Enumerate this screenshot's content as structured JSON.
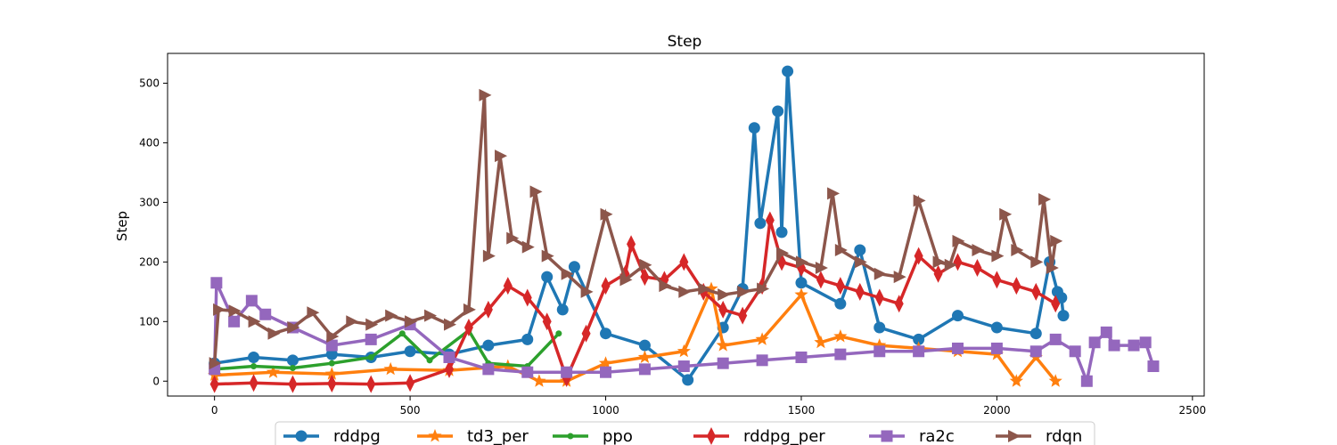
{
  "chart_data": {
    "type": "line",
    "title": "Step",
    "xlabel": "",
    "ylabel": "Step",
    "xlim": [
      -120,
      2530
    ],
    "ylim": [
      -25,
      550
    ],
    "xticks": [
      0,
      500,
      1000,
      1500,
      2000,
      2500
    ],
    "yticks": [
      0,
      100,
      200,
      300,
      400,
      500
    ],
    "grid": false,
    "legend_position": "bottom-center",
    "series": [
      {
        "name": "rddpg",
        "color": "#1f77b4",
        "marker": "circle",
        "x": [
          0,
          100,
          200,
          300,
          400,
          500,
          600,
          700,
          800,
          850,
          890,
          920,
          1000,
          1100,
          1210,
          1300,
          1350,
          1380,
          1395,
          1440,
          1450,
          1465,
          1500,
          1600,
          1650,
          1700,
          1800,
          1900,
          2000,
          2100,
          2135,
          2155,
          2165,
          2170
        ],
        "y": [
          30,
          40,
          35,
          45,
          40,
          50,
          45,
          60,
          70,
          175,
          120,
          192,
          80,
          60,
          2,
          90,
          155,
          425,
          265,
          453,
          250,
          520,
          165,
          130,
          220,
          90,
          70,
          110,
          90,
          80,
          200,
          150,
          140,
          110
        ]
      },
      {
        "name": "td3_per",
        "color": "#ff7f0e",
        "marker": "star",
        "x": [
          0,
          150,
          300,
          450,
          600,
          750,
          830,
          900,
          1000,
          1100,
          1200,
          1270,
          1300,
          1400,
          1500,
          1550,
          1600,
          1700,
          1800,
          1900,
          2000,
          2050,
          2100,
          2150
        ],
        "y": [
          10,
          15,
          12,
          20,
          18,
          25,
          0,
          0,
          30,
          40,
          50,
          155,
          60,
          70,
          145,
          65,
          75,
          60,
          55,
          50,
          45,
          0,
          40,
          0
        ]
      },
      {
        "name": "ppo",
        "color": "#2ca02c",
        "marker": "point",
        "x": [
          0,
          100,
          200,
          300,
          400,
          480,
          550,
          650,
          700,
          800,
          880
        ],
        "y": [
          20,
          25,
          22,
          30,
          40,
          80,
          35,
          85,
          30,
          25,
          80
        ]
      },
      {
        "name": "rddpg_per",
        "color": "#d62728",
        "marker": "thin_diamond",
        "x": [
          0,
          100,
          200,
          300,
          400,
          500,
          600,
          650,
          700,
          750,
          800,
          850,
          900,
          950,
          1000,
          1050,
          1065,
          1100,
          1150,
          1200,
          1250,
          1300,
          1350,
          1400,
          1420,
          1450,
          1500,
          1550,
          1600,
          1650,
          1700,
          1750,
          1800,
          1850,
          1900,
          1950,
          2000,
          2050,
          2100,
          2150
        ],
        "y": [
          -5,
          -3,
          -5,
          -4,
          -5,
          -3,
          20,
          90,
          120,
          160,
          140,
          100,
          5,
          80,
          160,
          180,
          230,
          175,
          170,
          200,
          150,
          120,
          110,
          160,
          270,
          200,
          190,
          170,
          160,
          150,
          140,
          130,
          210,
          180,
          200,
          190,
          170,
          160,
          150,
          130
        ]
      },
      {
        "name": "ra2c",
        "color": "#9467bd",
        "marker": "square",
        "x": [
          0,
          5,
          50,
          95,
          130,
          200,
          300,
          400,
          500,
          600,
          700,
          800,
          900,
          1000,
          1100,
          1200,
          1300,
          1400,
          1500,
          1600,
          1700,
          1800,
          1900,
          2000,
          2100,
          2150,
          2200,
          2230,
          2250,
          2280,
          2300,
          2350,
          2380,
          2400
        ],
        "y": [
          20,
          165,
          100,
          135,
          112,
          90,
          60,
          70,
          95,
          40,
          20,
          15,
          15,
          15,
          20,
          25,
          30,
          35,
          40,
          45,
          50,
          50,
          55,
          55,
          50,
          70,
          50,
          0,
          65,
          82,
          60,
          60,
          65,
          25
        ]
      },
      {
        "name": "rdqn",
        "color": "#8c564b",
        "marker": "triangle_right",
        "x": [
          0,
          10,
          50,
          100,
          150,
          200,
          250,
          300,
          350,
          400,
          450,
          500,
          550,
          600,
          650,
          690,
          700,
          730,
          760,
          800,
          820,
          850,
          900,
          950,
          1000,
          1050,
          1100,
          1150,
          1200,
          1250,
          1300,
          1350,
          1400,
          1450,
          1500,
          1550,
          1580,
          1600,
          1650,
          1700,
          1750,
          1800,
          1850,
          1880,
          1900,
          1950,
          2000,
          2020,
          2050,
          2100,
          2120,
          2140,
          2150
        ],
        "y": [
          30,
          120,
          118,
          100,
          80,
          90,
          115,
          75,
          100,
          95,
          110,
          100,
          110,
          95,
          120,
          480,
          210,
          378,
          240,
          225,
          318,
          210,
          180,
          150,
          280,
          170,
          195,
          160,
          150,
          155,
          145,
          150,
          155,
          215,
          200,
          190,
          315,
          220,
          200,
          180,
          175,
          303,
          200,
          195,
          235,
          220,
          210,
          280,
          220,
          200,
          305,
          190,
          235
        ]
      }
    ]
  }
}
